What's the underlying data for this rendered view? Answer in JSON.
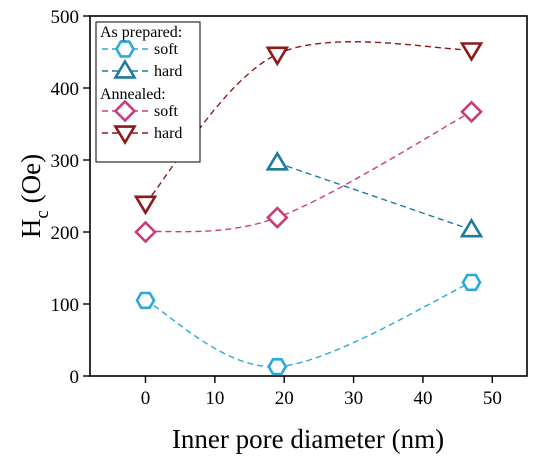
{
  "chart_data": {
    "type": "scatter",
    "xlabel": "Inner pore diameter (nm)",
    "ylabel_main": "H",
    "ylabel_sub": "c",
    "ylabel_unit": " (Oe)",
    "xlim": [
      -8,
      55
    ],
    "ylim": [
      0,
      500
    ],
    "xticks": [
      0,
      10,
      20,
      30,
      40,
      50
    ],
    "yticks": [
      0,
      100,
      200,
      300,
      400,
      500
    ],
    "grid": false,
    "legend_position": "top-left",
    "legend_groups": [
      {
        "heading": "As prepared:",
        "entries": [
          {
            "label": "soft",
            "series": 0
          },
          {
            "label": "hard",
            "series": 1
          }
        ]
      },
      {
        "heading": "Annealed:",
        "entries": [
          {
            "label": "soft",
            "series": 2
          },
          {
            "label": "hard",
            "series": 3
          }
        ]
      }
    ],
    "series": [
      {
        "group": "As prepared",
        "name": "soft",
        "marker": "hexagon",
        "color": "#2aa8d8",
        "x": [
          0,
          19,
          47
        ],
        "y": [
          105,
          13,
          130
        ]
      },
      {
        "group": "As prepared",
        "name": "hard",
        "marker": "triangle-up",
        "color": "#1f7aa0",
        "x": [
          19,
          47
        ],
        "y": [
          296,
          203
        ]
      },
      {
        "group": "Annealed",
        "name": "soft",
        "marker": "diamond",
        "color": "#c83e7c",
        "x": [
          0,
          19,
          47
        ],
        "y": [
          200,
          220,
          367
        ]
      },
      {
        "group": "Annealed",
        "name": "hard",
        "marker": "triangle-down",
        "color": "#8b1a1a",
        "x": [
          0,
          19,
          47
        ],
        "y": [
          240,
          447,
          453
        ]
      }
    ]
  }
}
